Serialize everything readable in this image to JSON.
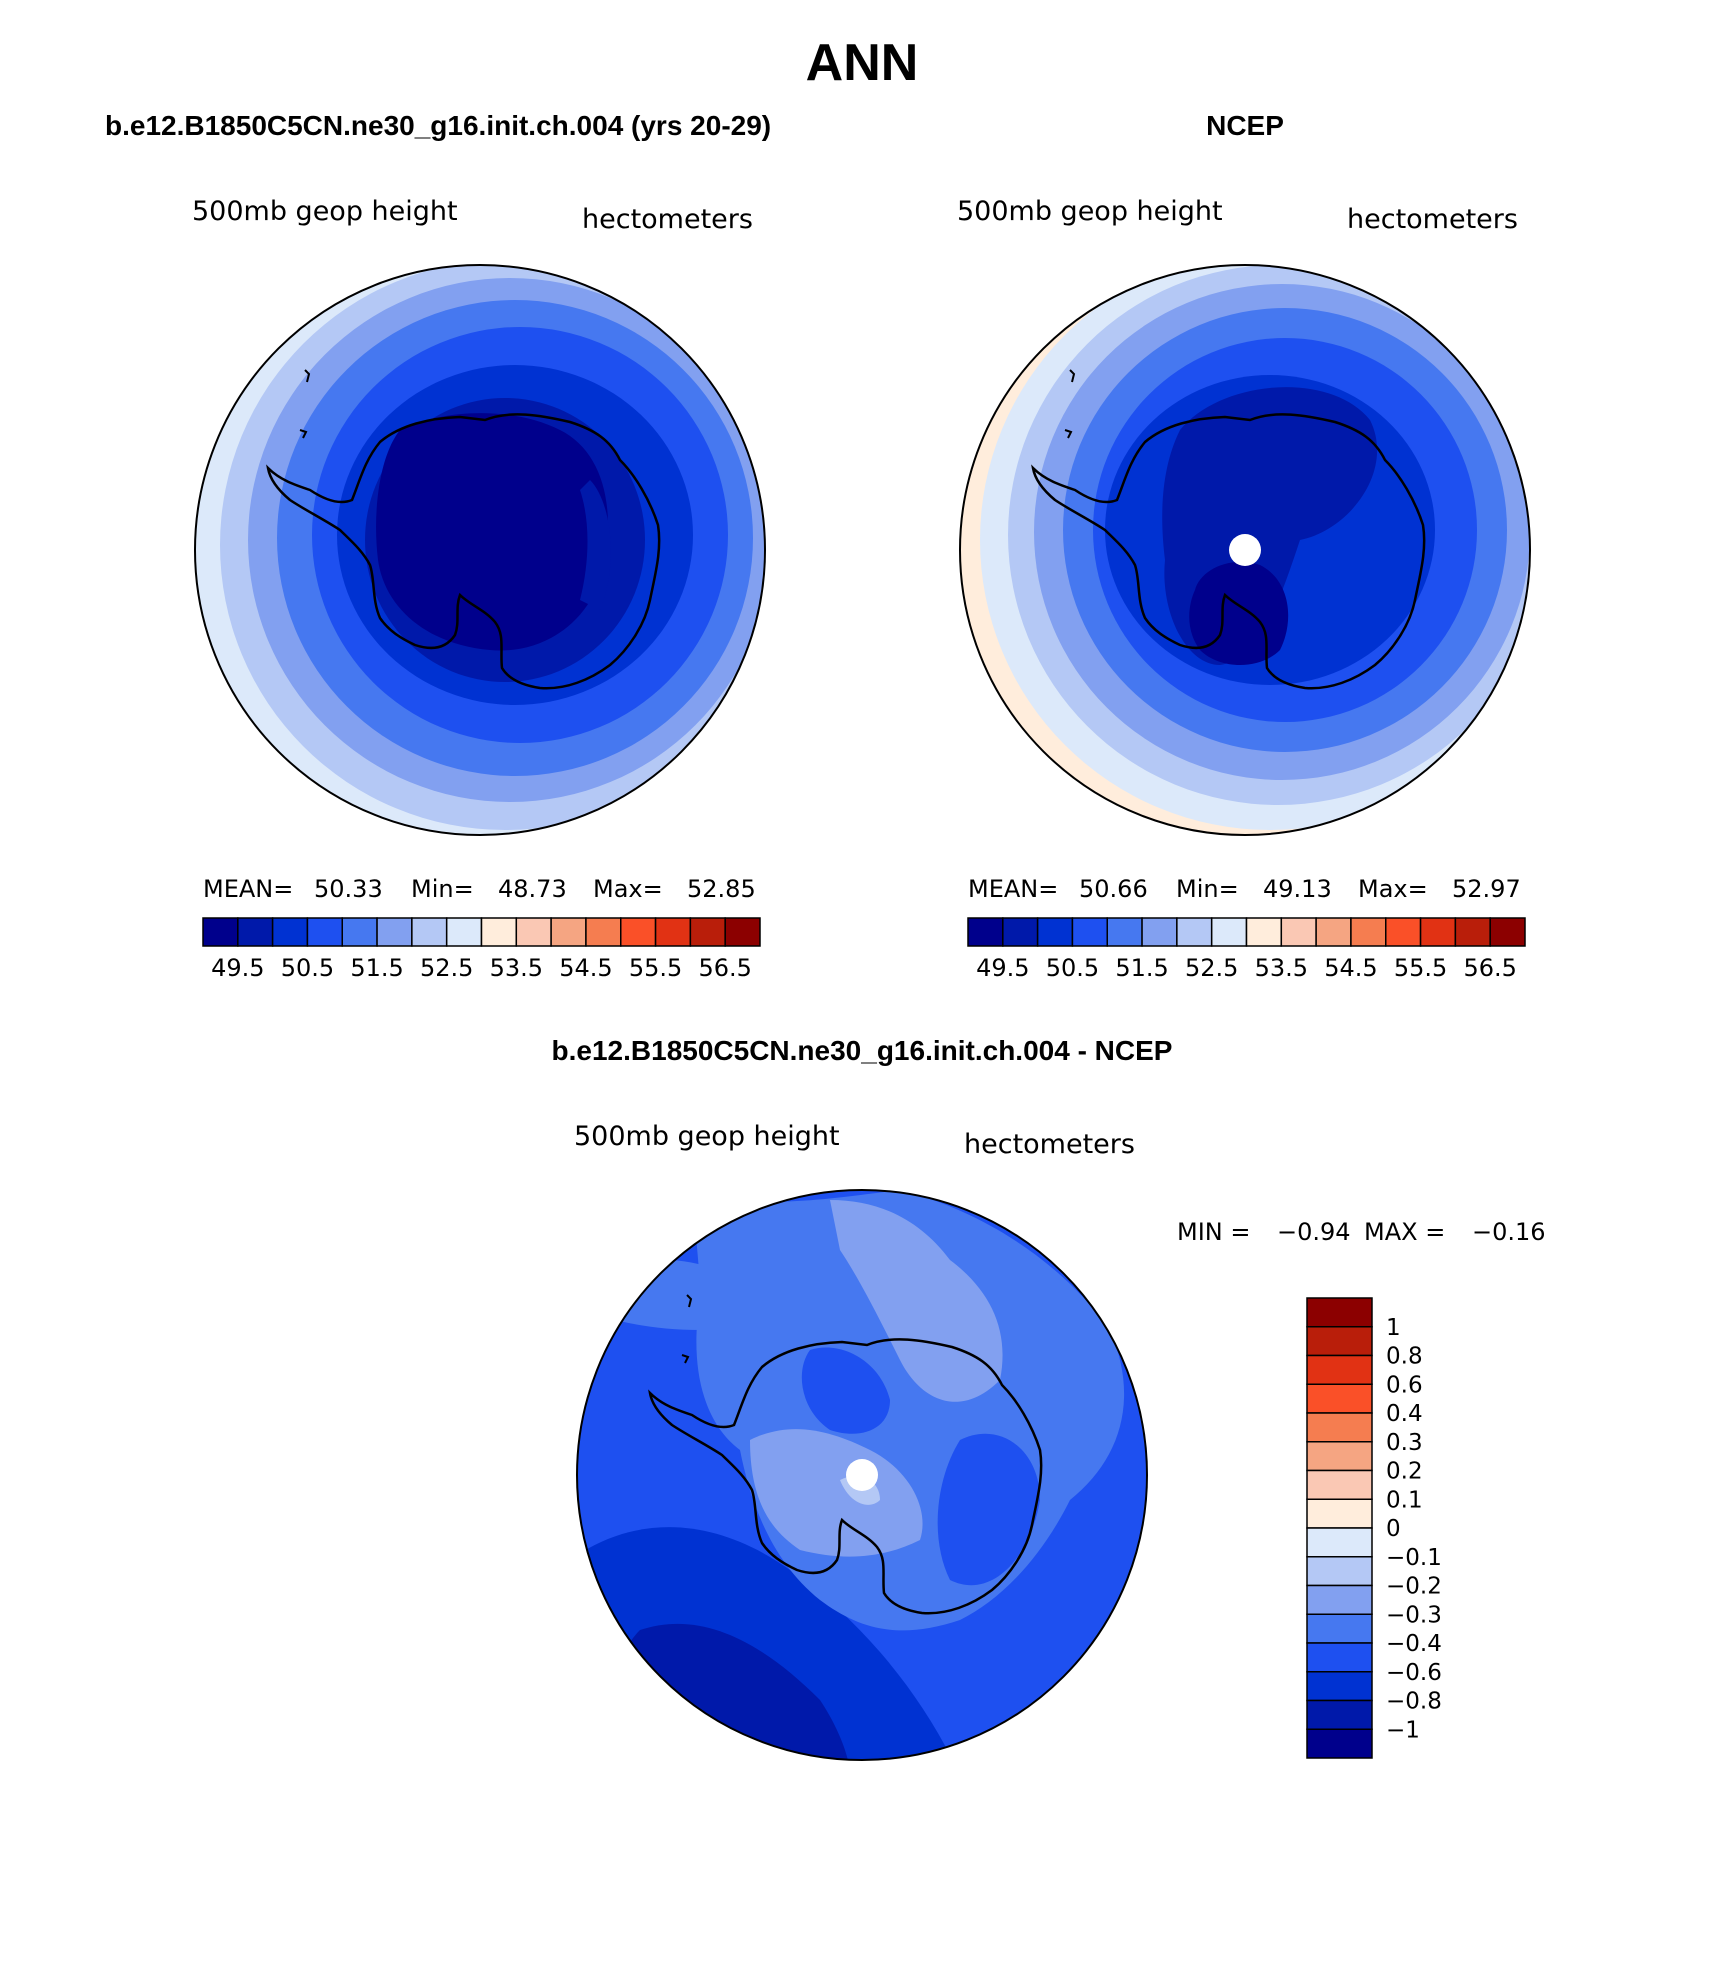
{
  "figure": {
    "title": "ANN"
  },
  "panels": [
    {
      "id": "model",
      "title": "b.e12.B1850C5CN.ne30_g16.init.ch.004 (yrs 20-29)",
      "left_label": "500mb geop height",
      "right_label": "hectometers",
      "stats": {
        "mean_label": "MEAN=",
        "mean": "50.33",
        "min_label": "Min=",
        "min": "48.73",
        "max_label": "Max=",
        "max": "52.85"
      }
    },
    {
      "id": "obs",
      "title": "NCEP",
      "left_label": "500mb geop height",
      "right_label": "hectometers",
      "stats": {
        "mean_label": "MEAN=",
        "mean": "50.66",
        "min_label": "Min=",
        "min": "49.13",
        "max_label": "Max=",
        "max": "52.97"
      }
    },
    {
      "id": "diff",
      "title": "b.e12.B1850C5CN.ne30_g16.init.ch.004 - NCEP",
      "left_label": "500mb geop height",
      "right_label": "hectometers",
      "stats": {
        "min_label": "MIN =",
        "min": "−0.94",
        "max_label": "MAX =",
        "max": "−0.16"
      }
    }
  ],
  "colors": {
    "abs_scale": [
      "#00008c",
      "#0019aa",
      "#0032d2",
      "#1e50f0",
      "#4678f0",
      "#82a0f0",
      "#b4c8f5",
      "#dce9fa",
      "#ffeddc",
      "#fac8b4",
      "#f5a582",
      "#f57d50",
      "#fa5028",
      "#e13214",
      "#b91e0a",
      "#8c0000"
    ],
    "diff_scale": [
      "#00008c",
      "#0019aa",
      "#0032d2",
      "#1e50f0",
      "#4678f0",
      "#82a0f0",
      "#b4c8f5",
      "#dce9fa",
      "#ffeddc",
      "#fac8b4",
      "#f5a582",
      "#f57d50",
      "#fa5028",
      "#e13214",
      "#b91e0a",
      "#8c0000"
    ]
  },
  "chart_data": [
    {
      "type": "heatmap",
      "map_projection": "south polar stereographic",
      "title": "b.e12.B1850C5CN.ne30_g16.init.ch.004 (yrs 20-29)",
      "variable": "500mb geop height",
      "units": "hectometers",
      "colorbar_levels": [
        "49.5",
        "50.5",
        "51.5",
        "52.5",
        "53.5",
        "54.5",
        "55.5",
        "56.5"
      ],
      "colorbar_orientation": "horizontal",
      "mean": 50.33,
      "min": 48.73,
      "max": 52.85
    },
    {
      "type": "heatmap",
      "map_projection": "south polar stereographic",
      "title": "NCEP",
      "variable": "500mb geop height",
      "units": "hectometers",
      "colorbar_levels": [
        "49.5",
        "50.5",
        "51.5",
        "52.5",
        "53.5",
        "54.5",
        "55.5",
        "56.5"
      ],
      "colorbar_orientation": "horizontal",
      "mean": 50.66,
      "min": 49.13,
      "max": 52.97
    },
    {
      "type": "heatmap",
      "map_projection": "south polar stereographic",
      "title": "b.e12.B1850C5CN.ne30_g16.init.ch.004 - NCEP",
      "variable": "500mb geop height",
      "units": "hectometers",
      "colorbar_levels": [
        "1",
        "0.8",
        "0.6",
        "0.4",
        "0.3",
        "0.2",
        "0.1",
        "0",
        "−0.1",
        "−0.2",
        "−0.3",
        "−0.4",
        "−0.6",
        "−0.8",
        "−1"
      ],
      "colorbar_orientation": "vertical",
      "min": -0.94,
      "max": -0.16
    }
  ]
}
